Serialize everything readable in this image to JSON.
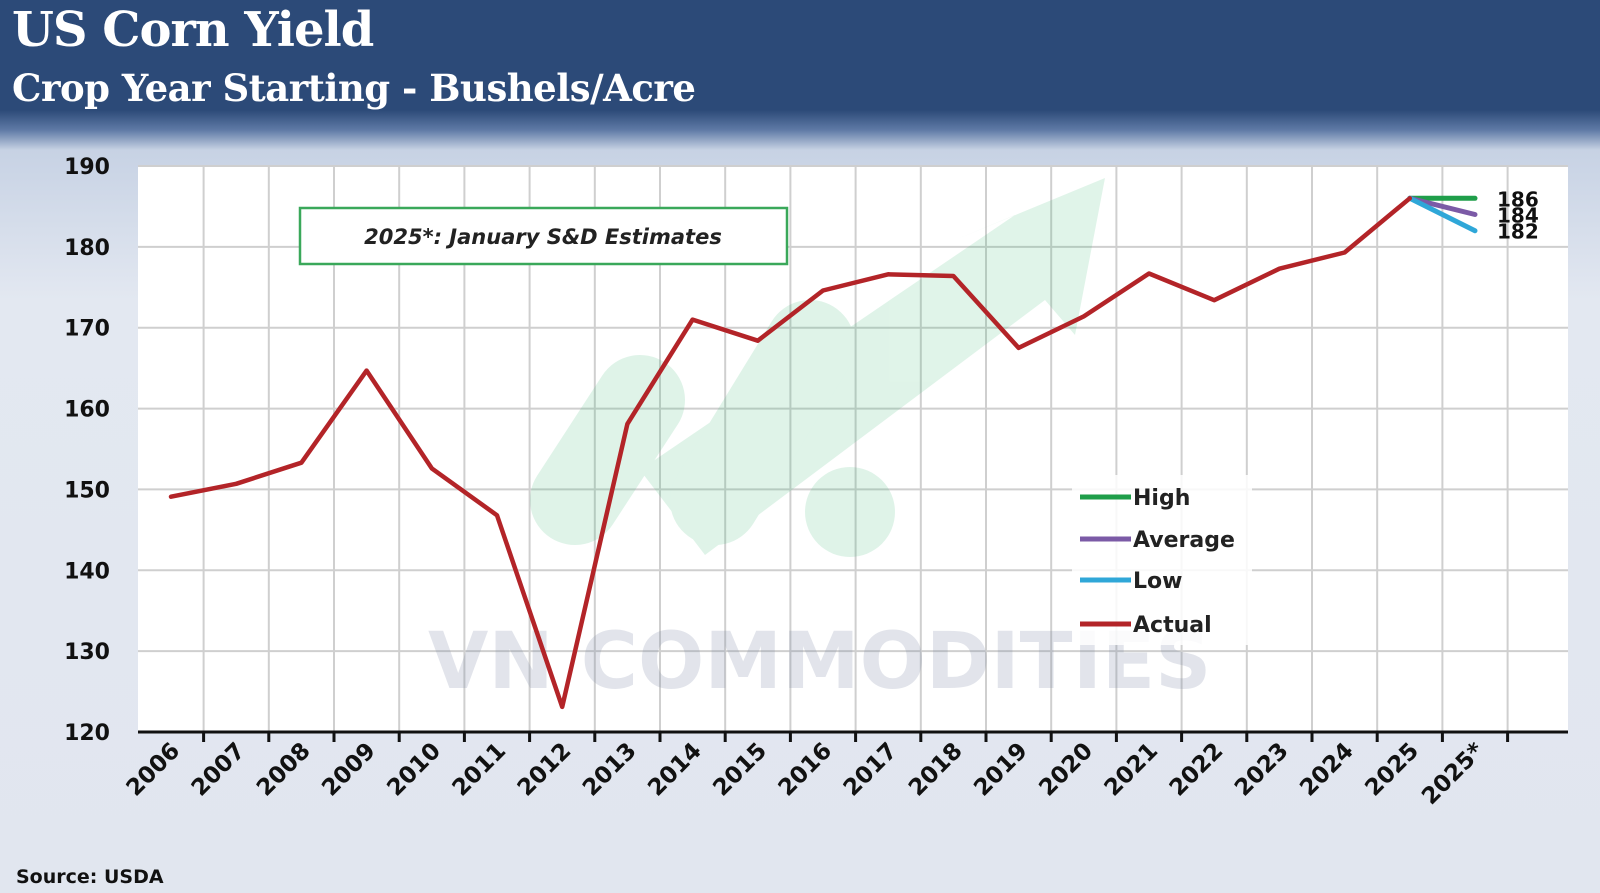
{
  "header": {
    "title": "US Corn Yield",
    "subtitle": "Crop Year Starting - Bushels/Acre"
  },
  "footer": {
    "source": "Source: USDA"
  },
  "watermark": {
    "text": "VN COMMODITIES"
  },
  "annotation": {
    "text": "2025*: January S&D Estimates"
  },
  "chart_data": {
    "type": "line",
    "title": "US Corn Yield",
    "subtitle": "Crop Year Starting - Bushels/Acre",
    "categories": [
      "2006",
      "2007",
      "2008",
      "2009",
      "2010",
      "2011",
      "2012",
      "2013",
      "2014",
      "2015",
      "2016",
      "2017",
      "2018",
      "2019",
      "2020",
      "2021",
      "2022",
      "2023",
      "2024",
      "2025",
      "2025*"
    ],
    "ylim": [
      120,
      190
    ],
    "yticks": [
      120,
      130,
      140,
      150,
      160,
      170,
      180,
      190
    ],
    "grid": true,
    "legend_position": "right",
    "series": [
      {
        "name": "Actual",
        "color": "#b32428",
        "values": [
          149.1,
          150.7,
          153.3,
          164.7,
          152.6,
          146.8,
          123.1,
          158.1,
          171.0,
          168.4,
          174.6,
          176.6,
          176.4,
          167.5,
          171.4,
          176.7,
          173.4,
          177.3,
          179.3,
          186.0,
          null
        ]
      },
      {
        "name": "High",
        "color": "#1f9e4a",
        "values": [
          null,
          null,
          null,
          null,
          null,
          null,
          null,
          null,
          null,
          null,
          null,
          null,
          null,
          null,
          null,
          null,
          null,
          null,
          null,
          186.0,
          186.0
        ]
      },
      {
        "name": "Average",
        "color": "#7b5aa6",
        "values": [
          null,
          null,
          null,
          null,
          null,
          null,
          null,
          null,
          null,
          null,
          null,
          null,
          null,
          null,
          null,
          null,
          null,
          null,
          null,
          186.0,
          184.0
        ]
      },
      {
        "name": "Low",
        "color": "#2fa7d8",
        "values": [
          null,
          null,
          null,
          null,
          null,
          null,
          null,
          null,
          null,
          null,
          null,
          null,
          null,
          null,
          null,
          null,
          null,
          null,
          null,
          186.0,
          182.0
        ]
      }
    ],
    "end_labels": [
      "186",
      "184",
      "182"
    ],
    "legend_order": [
      "High",
      "Average",
      "Low",
      "Actual"
    ]
  }
}
